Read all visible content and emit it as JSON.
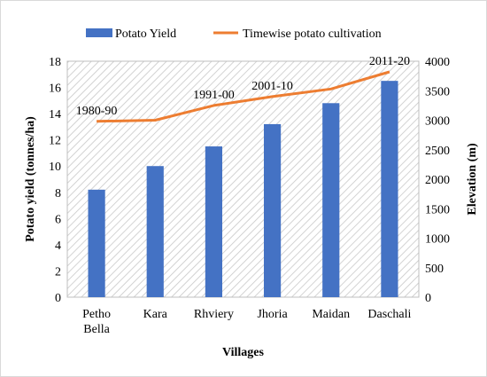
{
  "chart_data": {
    "type": "bar",
    "categories": [
      [
        "Petho",
        "Bella"
      ],
      [
        "Kara"
      ],
      [
        "Rhviery"
      ],
      [
        "Jhoria"
      ],
      [
        "Maidan"
      ],
      [
        "Daschali"
      ]
    ],
    "xlabel": "Villages",
    "ylabel": "Potato yield (tonnes/ha)",
    "y2label": "Elevation (m)",
    "ylim": [
      0,
      18
    ],
    "y2lim": [
      0,
      4000
    ],
    "yticks": [
      "0",
      "2",
      "4",
      "6",
      "8",
      "10",
      "12",
      "14",
      "16",
      "18"
    ],
    "y2ticks": [
      "0",
      "500",
      "1000",
      "1500",
      "2000",
      "2500",
      "3000",
      "3500",
      "4000"
    ],
    "series": [
      {
        "name": "Potato Yield",
        "kind": "bar",
        "axis": "left",
        "color": "#4472c4",
        "values": [
          8.2,
          10.0,
          11.5,
          13.2,
          14.8,
          16.5
        ]
      },
      {
        "name": "Timewise potato cultivation",
        "kind": "line",
        "axis": "right",
        "color": "#ed7d31",
        "values": [
          2980,
          3000,
          3250,
          3400,
          3530,
          3820
        ]
      }
    ],
    "annotations": [
      {
        "text": "1980-90",
        "category_index": 0
      },
      {
        "text": "1991-00",
        "category_index": 2
      },
      {
        "text": "2001-10",
        "category_index": 3
      },
      {
        "text": "2011-20",
        "category_index": 5
      }
    ],
    "grid": false,
    "plot_background": "diagonal-hatch",
    "legend_position": "top"
  }
}
